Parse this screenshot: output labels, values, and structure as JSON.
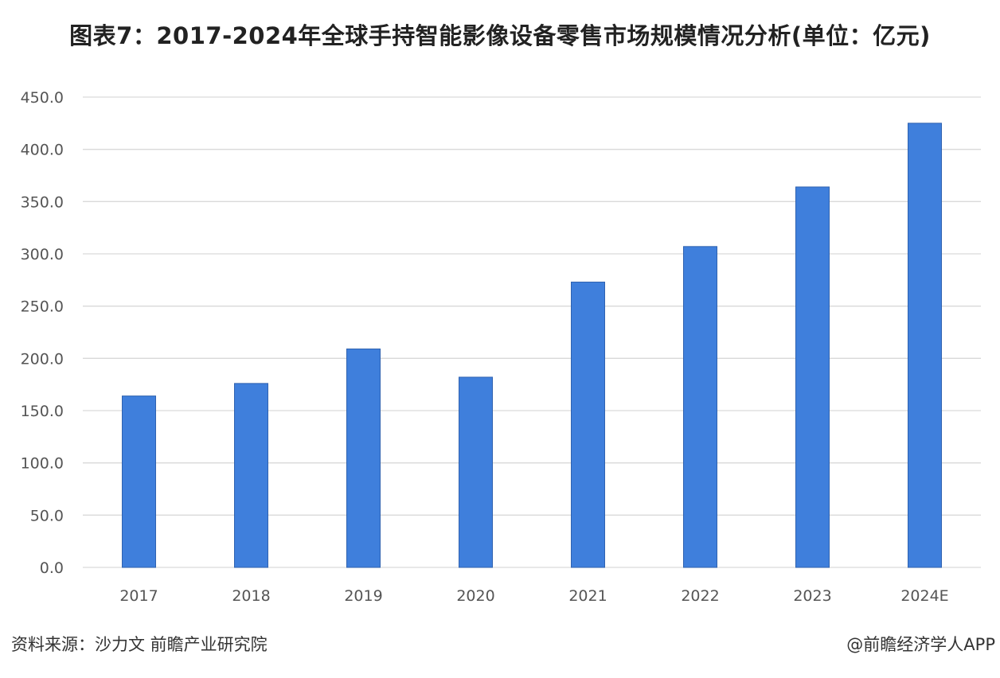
{
  "title": "图表7：2017-2024年全球手持智能影像设备零售市场规模情况分析(单位：亿元)",
  "source": "资料来源：沙力文 前瞻产业研究院",
  "credit": "@前瞻经济学人APP",
  "colors": {
    "bar": "#3f7fdc",
    "bar_edge": "#2f62b0",
    "grid": "#d9d9d9",
    "tick": "#555555"
  },
  "chart_data": {
    "type": "bar",
    "title": "图表7：2017-2024年全球手持智能影像设备零售市场规模情况分析(单位：亿元)",
    "categories": [
      "2017",
      "2018",
      "2019",
      "2020",
      "2021",
      "2022",
      "2023",
      "2024E"
    ],
    "values": [
      164,
      176,
      209,
      182,
      273,
      307,
      364,
      425
    ],
    "ylim": [
      0,
      450
    ],
    "yticks": [
      "0.0",
      "50.0",
      "100.0",
      "150.0",
      "200.0",
      "250.0",
      "300.0",
      "350.0",
      "400.0",
      "450.0"
    ],
    "grid": true,
    "legend": "none"
  }
}
